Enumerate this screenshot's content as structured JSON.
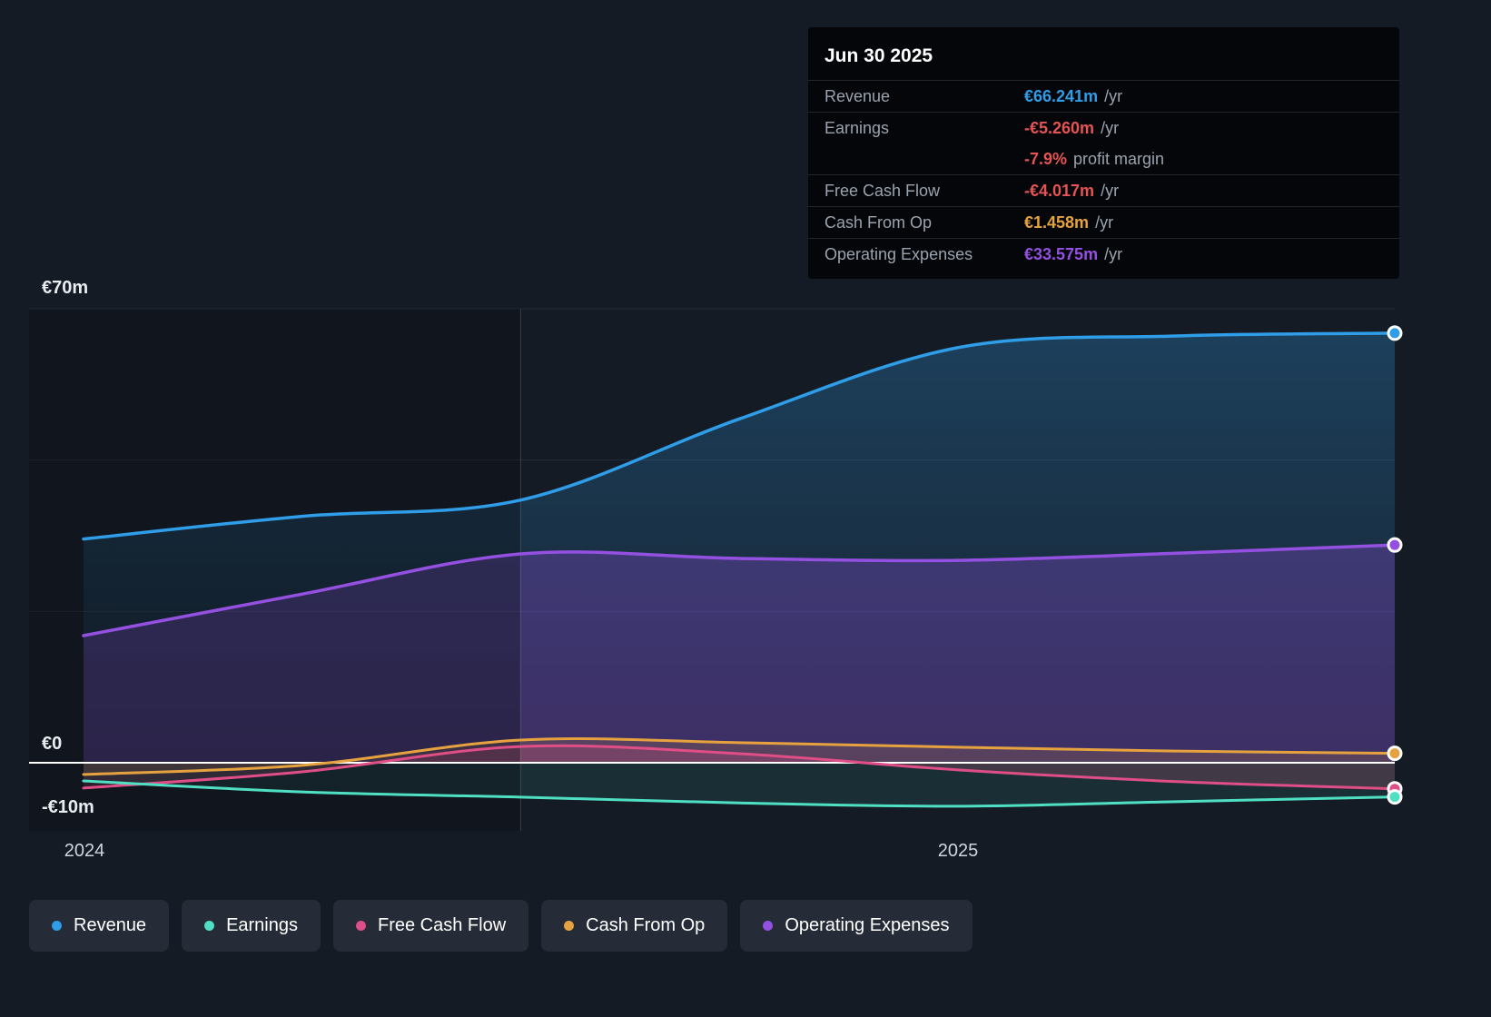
{
  "colors": {
    "background": "#151b25",
    "revenue": "#2f9de8",
    "earnings": "#4fe0c4",
    "free_cash_flow": "#df4e86",
    "cash_from_op": "#e6a23f",
    "operating_expenses": "#9450e0",
    "negative_text": "#e55353",
    "grid": "#242d3b",
    "zero_line": "#ffffff",
    "divider": "#566073",
    "tooltip_bg": "#04060a",
    "legend_bg": "#262c37"
  },
  "tooltip": {
    "title": "Jun 30 2025",
    "rows": [
      {
        "label": "Revenue",
        "value": "€66.241m",
        "suffix": "/yr",
        "color_key": "revenue"
      },
      {
        "label": "Earnings",
        "value": "-€5.260m",
        "suffix": "/yr",
        "color_key": "negative_text"
      },
      {
        "label": "",
        "value": "-7.9%",
        "suffix": "profit margin",
        "color_key": "negative_text"
      },
      {
        "label": "Free Cash Flow",
        "value": "-€4.017m",
        "suffix": "/yr",
        "color_key": "negative_text"
      },
      {
        "label": "Cash From Op",
        "value": "€1.458m",
        "suffix": "/yr",
        "color_key": "cash_from_op"
      },
      {
        "label": "Operating Expenses",
        "value": "€33.575m",
        "suffix": "/yr",
        "color_key": "operating_expenses"
      }
    ]
  },
  "axis": {
    "y_labels": [
      {
        "text": "€70m",
        "value": 70
      },
      {
        "text": "€0",
        "value": 0
      },
      {
        "text": "-€10m",
        "value": -10
      }
    ],
    "x_labels": [
      {
        "text": "2024",
        "year": 2024.0
      },
      {
        "text": "2025",
        "year": 2025.0
      }
    ]
  },
  "legend": [
    {
      "label": "Revenue",
      "color_key": "revenue"
    },
    {
      "label": "Earnings",
      "color_key": "earnings"
    },
    {
      "label": "Free Cash Flow",
      "color_key": "free_cash_flow"
    },
    {
      "label": "Cash From Op",
      "color_key": "cash_from_op"
    },
    {
      "label": "Operating Expenses",
      "color_key": "operating_expenses"
    }
  ],
  "chart_data": {
    "type": "area",
    "x": [
      2024.0,
      2024.25,
      2024.5,
      2024.75,
      2025.0,
      2025.25,
      2025.5
    ],
    "x_unit": "year",
    "series": [
      {
        "name": "Revenue",
        "color_key": "revenue",
        "values": [
          34.5,
          38.0,
          40.5,
          53.0,
          64.0,
          65.8,
          66.241
        ]
      },
      {
        "name": "Operating Expenses",
        "color_key": "operating_expenses",
        "values": [
          19.6,
          26.0,
          32.2,
          31.5,
          31.2,
          32.3,
          33.575
        ]
      },
      {
        "name": "Cash From Op",
        "color_key": "cash_from_op",
        "values": [
          -1.8,
          -0.4,
          3.5,
          3.1,
          2.4,
          1.8,
          1.458
        ]
      },
      {
        "name": "Free Cash Flow",
        "color_key": "free_cash_flow",
        "values": [
          -3.9,
          -1.4,
          2.5,
          1.4,
          -1.1,
          -2.9,
          -4.017
        ]
      },
      {
        "name": "Earnings",
        "color_key": "earnings",
        "values": [
          -2.8,
          -4.5,
          -5.3,
          -6.2,
          -6.7,
          -6.0,
          -5.26
        ]
      }
    ],
    "ylim": [
      -10.5,
      70
    ],
    "grid_values": [
      70,
      46.67,
      23.33
    ],
    "zero_line": 0,
    "divider_x": 2024.5,
    "legend_position": "bottom",
    "title": "",
    "xlabel": "",
    "ylabel": ""
  }
}
